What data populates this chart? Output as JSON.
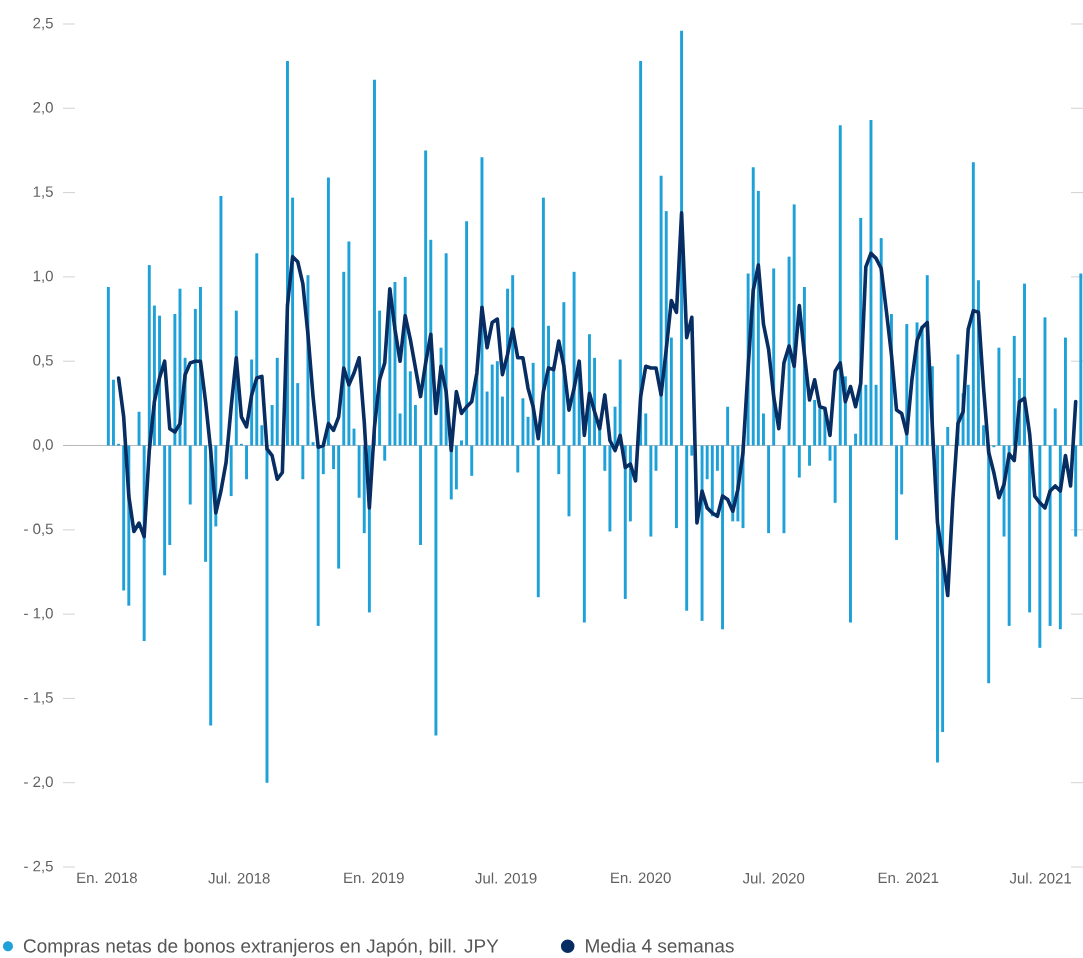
{
  "chart_data": {
    "type": "bar",
    "x": [
      "2018-01-03",
      "2018-01-10",
      "2018-01-17",
      "2018-01-24",
      "2018-01-31",
      "2018-02-07",
      "2018-02-14",
      "2018-02-21",
      "2018-02-28",
      "2018-03-07",
      "2018-03-14",
      "2018-03-21",
      "2018-03-28",
      "2018-04-04",
      "2018-04-11",
      "2018-04-18",
      "2018-04-25",
      "2018-05-02",
      "2018-05-09",
      "2018-05-16",
      "2018-05-23",
      "2018-05-30",
      "2018-06-06",
      "2018-06-13",
      "2018-06-20",
      "2018-06-27",
      "2018-07-04",
      "2018-07-11",
      "2018-07-18",
      "2018-07-25",
      "2018-08-01",
      "2018-08-08",
      "2018-08-15",
      "2018-08-22",
      "2018-08-29",
      "2018-09-05",
      "2018-09-12",
      "2018-09-19",
      "2018-09-26",
      "2018-10-03",
      "2018-10-10",
      "2018-10-17",
      "2018-10-24",
      "2018-10-31",
      "2018-11-07",
      "2018-11-14",
      "2018-11-21",
      "2018-11-28",
      "2018-12-05",
      "2018-12-12",
      "2018-12-19",
      "2018-12-26",
      "2019-01-02",
      "2019-01-09",
      "2019-01-16",
      "2019-01-23",
      "2019-01-30",
      "2019-02-06",
      "2019-02-13",
      "2019-02-20",
      "2019-02-27",
      "2019-03-06",
      "2019-03-13",
      "2019-03-20",
      "2019-03-27",
      "2019-04-03",
      "2019-04-10",
      "2019-04-17",
      "2019-04-24",
      "2019-05-01",
      "2019-05-08",
      "2019-05-15",
      "2019-05-22",
      "2019-05-29",
      "2019-06-05",
      "2019-06-12",
      "2019-06-19",
      "2019-06-26",
      "2019-07-03",
      "2019-07-10",
      "2019-07-17",
      "2019-07-24",
      "2019-07-31",
      "2019-08-07",
      "2019-08-14",
      "2019-08-21",
      "2019-08-28",
      "2019-09-04",
      "2019-09-11",
      "2019-09-18",
      "2019-09-25",
      "2019-10-02",
      "2019-10-09",
      "2019-10-16",
      "2019-10-23",
      "2019-10-30",
      "2019-11-06",
      "2019-11-13",
      "2019-11-20",
      "2019-11-27",
      "2019-12-04",
      "2019-12-11",
      "2019-12-18",
      "2019-12-25",
      "2020-01-01",
      "2020-01-08",
      "2020-01-15",
      "2020-01-22",
      "2020-01-29",
      "2020-02-05",
      "2020-02-12",
      "2020-02-19",
      "2020-02-26",
      "2020-03-04",
      "2020-03-11",
      "2020-03-18",
      "2020-03-25",
      "2020-04-01",
      "2020-04-08",
      "2020-04-15",
      "2020-04-22",
      "2020-04-29",
      "2020-05-06",
      "2020-05-13",
      "2020-05-20",
      "2020-05-27",
      "2020-06-03",
      "2020-06-10",
      "2020-06-17",
      "2020-06-24",
      "2020-07-01",
      "2020-07-08",
      "2020-07-15",
      "2020-07-22",
      "2020-07-29",
      "2020-08-05",
      "2020-08-12",
      "2020-08-19",
      "2020-08-26",
      "2020-09-02",
      "2020-09-09",
      "2020-09-16",
      "2020-09-23",
      "2020-09-30",
      "2020-10-07",
      "2020-10-14",
      "2020-10-21",
      "2020-10-28",
      "2020-11-04",
      "2020-11-11",
      "2020-11-18",
      "2020-11-25",
      "2020-12-02",
      "2020-12-09",
      "2020-12-16",
      "2020-12-23",
      "2020-12-30",
      "2021-01-06",
      "2021-01-13",
      "2021-01-20",
      "2021-01-27",
      "2021-02-03",
      "2021-02-10",
      "2021-02-17",
      "2021-02-24",
      "2021-03-03",
      "2021-03-10",
      "2021-03-17",
      "2021-03-24",
      "2021-03-31",
      "2021-04-07",
      "2021-04-14",
      "2021-04-21",
      "2021-04-28",
      "2021-05-05",
      "2021-05-12",
      "2021-05-19",
      "2021-05-26",
      "2021-06-02",
      "2021-06-09",
      "2021-06-16",
      "2021-06-23",
      "2021-06-30",
      "2021-07-07",
      "2021-07-14",
      "2021-07-21",
      "2021-07-28",
      "2021-08-04",
      "2021-08-11",
      "2021-08-18",
      "2021-08-25"
    ],
    "series": [
      {
        "name": "Compras netas de bonos extranjeros en Japón, bill. JPY",
        "color": "#1ea0d8",
        "values": [
          0.94,
          0.39,
          0.01,
          -0.86,
          -0.95,
          null,
          0.2,
          -1.16,
          1.07,
          0.83,
          0.77,
          -0.77,
          -0.59,
          0.78,
          0.93,
          0.52,
          -0.35,
          0.81,
          0.94,
          -0.69,
          -1.66,
          -0.48,
          1.48,
          null,
          -0.3,
          0.8,
          0.01,
          -0.2,
          0.51,
          1.14,
          0.12,
          -2.0,
          0.24,
          0.52,
          null,
          2.28,
          1.47,
          0.37,
          -0.2,
          1.01,
          0.02,
          -1.07,
          -0.17,
          1.59,
          -0.14,
          -0.73,
          1.03,
          1.21,
          0.1,
          -0.31,
          -0.52,
          -0.99,
          2.17,
          0.8,
          -0.09,
          0.93,
          0.97,
          0.19,
          1.0,
          0.44,
          0.24,
          -0.59,
          1.75,
          1.22,
          -1.72,
          0.58,
          1.14,
          -0.32,
          -0.26,
          0.03,
          1.33,
          -0.18,
          0.43,
          1.71,
          0.32,
          0.48,
          0.5,
          0.29,
          0.93,
          1.01,
          -0.16,
          0.28,
          0.17,
          0.49,
          -0.9,
          1.47,
          0.71,
          0.47,
          -0.17,
          0.85,
          -0.42,
          1.03,
          0.5,
          -1.05,
          0.66,
          0.52,
          0.11,
          -0.15,
          -0.51,
          0.23,
          0.51,
          -0.91,
          -0.45,
          null,
          2.28,
          0.19,
          -0.54,
          -0.15,
          1.6,
          1.39,
          0.64,
          -0.49,
          2.46,
          -0.98,
          -0.06,
          null,
          -1.04,
          -0.2,
          -0.42,
          -0.15,
          -1.09,
          0.23,
          -0.45,
          -0.45,
          -0.49,
          1.02,
          1.65,
          1.51,
          0.19,
          -0.52,
          1.05,
          null,
          -0.52,
          1.12,
          1.43,
          -0.19,
          0.94,
          -0.12,
          0.27,
          0.22,
          0.23,
          -0.09,
          -0.34,
          1.9,
          0.41,
          -1.05,
          0.07,
          1.35,
          0.36,
          1.93,
          0.36,
          1.23,
          null,
          0.78,
          -0.56,
          -0.29,
          0.72,
          null,
          0.73,
          0.71,
          1.01,
          0.47,
          -1.88,
          -1.7,
          0.11,
          null,
          0.54,
          0.31,
          0.36,
          1.68,
          0.98,
          0.12,
          -1.41,
          -0.01,
          0.58,
          -0.54,
          -1.07,
          0.65,
          0.4,
          0.96,
          -0.99,
          null,
          -1.2,
          0.76,
          -1.07,
          0.22,
          -1.09,
          0.64,
          null,
          -0.54,
          1.02
        ]
      },
      {
        "name": "Media 4 semanas",
        "type": "line",
        "color": "#072d63",
        "values": [
          null,
          null,
          0.4,
          0.17,
          -0.3,
          -0.51,
          -0.46,
          -0.54,
          -0.03,
          0.26,
          0.4,
          0.5,
          0.1,
          0.08,
          0.13,
          0.42,
          0.49,
          0.5,
          0.5,
          0.26,
          -0.03,
          -0.4,
          -0.27,
          -0.1,
          0.23,
          0.52,
          0.17,
          0.11,
          0.3,
          0.4,
          0.41,
          -0.02,
          -0.06,
          -0.2,
          -0.16,
          0.83,
          1.12,
          1.09,
          0.96,
          0.66,
          0.29,
          -0.01,
          0.0,
          0.13,
          0.09,
          0.17,
          0.46,
          0.36,
          0.43,
          0.52,
          0.14,
          -0.37,
          0.11,
          0.39,
          0.49,
          0.93,
          0.69,
          0.5,
          0.77,
          0.63,
          0.46,
          0.29,
          0.49,
          0.66,
          0.19,
          0.47,
          0.32,
          -0.03,
          0.32,
          0.19,
          0.23,
          0.26,
          0.43,
          0.82,
          0.58,
          0.73,
          0.75,
          0.42,
          0.54,
          0.69,
          0.52,
          0.52,
          0.34,
          0.23,
          0.04,
          0.32,
          0.46,
          0.45,
          0.62,
          0.47,
          0.21,
          0.34,
          0.5,
          0.06,
          0.31,
          0.2,
          0.1,
          0.3,
          0.03,
          -0.03,
          0.06,
          -0.13,
          -0.11,
          -0.21,
          0.29,
          0.47,
          0.46,
          0.46,
          0.3,
          0.57,
          0.86,
          0.79,
          1.38,
          0.64,
          0.76,
          -0.46,
          -0.27,
          -0.37,
          -0.4,
          -0.42,
          -0.3,
          -0.32,
          -0.39,
          -0.26,
          -0.04,
          0.46,
          0.92,
          1.07,
          0.72,
          0.57,
          0.29,
          0.1,
          0.49,
          0.59,
          0.47,
          0.83,
          0.54,
          0.27,
          0.39,
          0.23,
          0.22,
          0.06,
          0.44,
          0.49,
          0.26,
          0.35,
          0.23,
          0.37,
          1.06,
          1.14,
          1.11,
          1.05,
          0.8,
          0.54,
          0.21,
          0.19,
          0.07,
          0.39,
          0.62,
          0.7,
          0.73,
          0.11,
          -0.46,
          -0.66,
          -0.89,
          -0.32,
          0.13,
          0.2,
          0.69,
          0.8,
          0.79,
          0.34,
          -0.04,
          -0.16,
          -0.31,
          -0.23,
          -0.05,
          -0.09,
          0.26,
          0.28,
          0.07,
          -0.3,
          -0.34,
          -0.37,
          -0.27,
          -0.24,
          -0.27,
          -0.06,
          -0.24,
          0.26,
          null
        ]
      }
    ],
    "xlim": [
      "2017-11-02",
      "2021-08-28"
    ],
    "xticks": [
      {
        "value": "2018-01-01",
        "label": "En. 2018"
      },
      {
        "value": "2018-07-01",
        "label": "Jul. 2018"
      },
      {
        "value": "2019-01-01",
        "label": "En. 2019"
      },
      {
        "value": "2019-07-01",
        "label": "Jul. 2019"
      },
      {
        "value": "2020-01-01",
        "label": "En. 2020"
      },
      {
        "value": "2020-07-01",
        "label": "Jul. 2020"
      },
      {
        "value": "2021-01-01",
        "label": "En. 2021"
      },
      {
        "value": "2021-07-01",
        "label": "Jul. 2021"
      }
    ],
    "ylim": [
      -2.5,
      2.5
    ],
    "yticks": [
      {
        "value": -2.5,
        "label": "- 2,5"
      },
      {
        "value": -2.0,
        "label": "- 2,0"
      },
      {
        "value": -1.5,
        "label": "- 1,5"
      },
      {
        "value": -1.0,
        "label": "- 1,0"
      },
      {
        "value": -0.5,
        "label": "- 0,5"
      },
      {
        "value": 0.0,
        "label": "0,0"
      },
      {
        "value": 0.5,
        "label": "0,5"
      },
      {
        "value": 1.0,
        "label": "1,0"
      },
      {
        "value": 1.5,
        "label": "1,5"
      },
      {
        "value": 2.0,
        "label": "2,0"
      },
      {
        "value": 2.5,
        "label": "2,5"
      }
    ],
    "legend": "bottom"
  }
}
